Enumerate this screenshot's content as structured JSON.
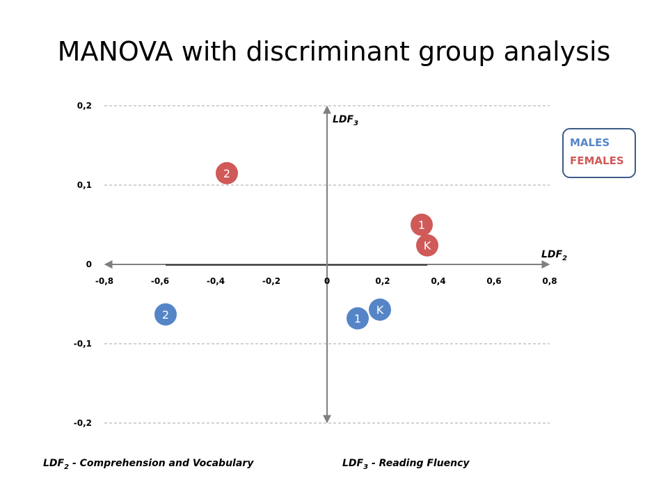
{
  "title": "MANOVA with discriminant group analysis",
  "colors": {
    "males": "#5585c7",
    "females": "#cf5a58",
    "grid": "#a6a6a6",
    "axis": "#7f7f7f",
    "legend_border": "#3b5c87"
  },
  "legend": {
    "males": "MALES",
    "females": "FEMALES"
  },
  "axes": {
    "x_name": "LDF",
    "x_sub": "2",
    "y_name": "LDF",
    "y_sub": "3"
  },
  "footnotes": {
    "ldf2": {
      "name": "LDF",
      "sub": "2",
      "text": "- Comprehension and Vocabulary"
    },
    "ldf3": {
      "name": "LDF",
      "sub": "3",
      "text": "- Reading Fluency"
    }
  },
  "chart_data": {
    "type": "scatter",
    "title": "MANOVA with discriminant group analysis",
    "xlabel": "LDF2",
    "ylabel": "LDF3",
    "xlim": [
      -0.8,
      0.8
    ],
    "ylim": [
      -0.2,
      0.2
    ],
    "x_ticks": [
      "-0,8",
      "-0,6",
      "-0,4",
      "-0,2",
      "0",
      "0,2",
      "0,4",
      "0,6",
      "0,8"
    ],
    "y_ticks": [
      "0,2",
      "0,1",
      "0",
      "-0,1",
      "-0,2"
    ],
    "grid": "horizontal dashed",
    "legend_position": "right",
    "series": [
      {
        "name": "MALES",
        "points": [
          {
            "label": "2",
            "x": -0.58,
            "y": -0.063
          },
          {
            "label": "1",
            "x": 0.11,
            "y": -0.068
          },
          {
            "label": "K",
            "x": 0.19,
            "y": -0.057
          }
        ]
      },
      {
        "name": "FEMALES",
        "points": [
          {
            "label": "2",
            "x": -0.36,
            "y": 0.115
          },
          {
            "label": "1",
            "x": 0.34,
            "y": 0.05
          },
          {
            "label": "K",
            "x": 0.36,
            "y": 0.024
          }
        ]
      }
    ]
  }
}
